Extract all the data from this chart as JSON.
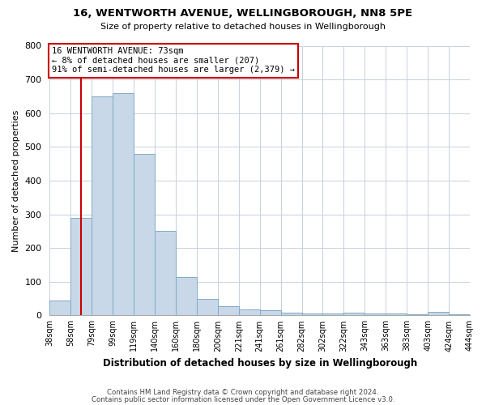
{
  "title1": "16, WENTWORTH AVENUE, WELLINGBOROUGH, NN8 5PE",
  "title2": "Size of property relative to detached houses in Wellingborough",
  "xlabel": "Distribution of detached houses by size in Wellingborough",
  "ylabel": "Number of detached properties",
  "bin_labels": [
    "38sqm",
    "58sqm",
    "79sqm",
    "99sqm",
    "119sqm",
    "140sqm",
    "160sqm",
    "180sqm",
    "200sqm",
    "221sqm",
    "241sqm",
    "261sqm",
    "282sqm",
    "302sqm",
    "322sqm",
    "343sqm",
    "363sqm",
    "383sqm",
    "403sqm",
    "424sqm",
    "444sqm"
  ],
  "values": [
    45,
    290,
    650,
    660,
    480,
    250,
    115,
    50,
    28,
    18,
    15,
    8,
    7,
    5,
    8,
    5,
    5,
    4,
    10,
    4
  ],
  "bar_color": "#c8d8e8",
  "bar_edge_color": "#7faac8",
  "background_color": "#ffffff",
  "grid_color": "#c8d0dc",
  "red_line_color": "#cc0000",
  "red_line_x": 1,
  "annotation_title": "16 WENTWORTH AVENUE: 73sqm",
  "annotation_line1": "← 8% of detached houses are smaller (207)",
  "annotation_line2": "91% of semi-detached houses are larger (2,379) →",
  "annotation_box_color": "#ffffff",
  "annotation_box_edge_color": "#cc0000",
  "ylim": [
    0,
    800
  ],
  "yticks": [
    0,
    100,
    200,
    300,
    400,
    500,
    600,
    700,
    800
  ],
  "footnote1": "Contains HM Land Registry data © Crown copyright and database right 2024.",
  "footnote2": "Contains public sector information licensed under the Open Government Licence v3.0."
}
